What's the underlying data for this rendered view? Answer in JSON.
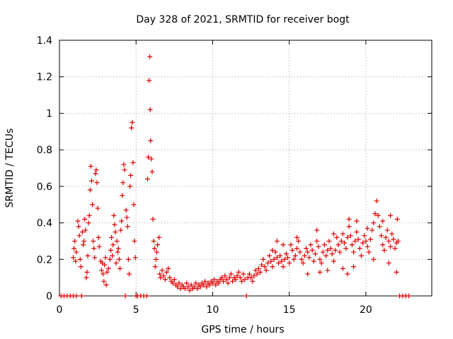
{
  "chart_data": {
    "type": "scatter",
    "title": "Day 328 of 2021, SRMTID for receiver bogt",
    "xlabel": "GPS time / hours",
    "ylabel": "SRMTID / TECUs",
    "xlim": [
      0,
      24.3
    ],
    "ylim": [
      0,
      1.4
    ],
    "xticks": [
      0,
      5,
      10,
      15,
      20
    ],
    "xtick_labels": [
      "0",
      "5",
      "10",
      "15",
      "20"
    ],
    "yticks": [
      0,
      0.2,
      0.4,
      0.6,
      0.8,
      1.0,
      1.2,
      1.4
    ],
    "ytick_labels": [
      "0",
      "0.2",
      "0.4",
      "0.6",
      "0.8",
      "1",
      "1.2",
      "1.4"
    ],
    "grid": true,
    "marker": "+",
    "marker_color": "#e00000",
    "series": [
      {
        "name": "SRMTID",
        "points": [
          [
            0.1,
            0.0
          ],
          [
            0.3,
            0.0
          ],
          [
            0.5,
            0.0
          ],
          [
            0.7,
            0.0
          ],
          [
            0.9,
            0.0
          ],
          [
            1.1,
            0.0
          ],
          [
            0.9,
            0.21
          ],
          [
            0.95,
            0.26
          ],
          [
            1.0,
            0.3
          ],
          [
            1.05,
            0.19
          ],
          [
            1.1,
            0.24
          ],
          [
            1.2,
            0.41
          ],
          [
            1.25,
            0.38
          ],
          [
            1.3,
            0.33
          ],
          [
            1.35,
            0.2
          ],
          [
            1.4,
            0.16
          ],
          [
            1.45,
            0.0
          ],
          [
            1.5,
            0.35
          ],
          [
            1.55,
            0.28
          ],
          [
            1.6,
            0.3
          ],
          [
            1.65,
            0.42
          ],
          [
            1.7,
            0.36
          ],
          [
            1.75,
            0.1
          ],
          [
            1.8,
            0.13
          ],
          [
            1.85,
            0.22
          ],
          [
            1.9,
            0.4
          ],
          [
            1.95,
            0.44
          ],
          [
            2.0,
            0.58
          ],
          [
            2.05,
            0.71
          ],
          [
            2.1,
            0.63
          ],
          [
            2.15,
            0.5
          ],
          [
            2.2,
            0.3
          ],
          [
            2.25,
            0.26
          ],
          [
            2.3,
            0.21
          ],
          [
            2.35,
            0.67
          ],
          [
            2.4,
            0.69
          ],
          [
            2.45,
            0.62
          ],
          [
            2.5,
            0.48
          ],
          [
            2.55,
            0.32
          ],
          [
            2.6,
            0.27
          ],
          [
            2.7,
            0.19
          ],
          [
            2.75,
            0.14
          ],
          [
            2.8,
            0.18
          ],
          [
            2.85,
            0.12
          ],
          [
            2.9,
            0.08
          ],
          [
            2.95,
            0.17
          ],
          [
            3.0,
            0.21
          ],
          [
            3.05,
            0.06
          ],
          [
            3.1,
            0.13
          ],
          [
            3.2,
            0.15
          ],
          [
            3.3,
            0.2
          ],
          [
            3.35,
            0.25
          ],
          [
            3.4,
            0.32
          ],
          [
            3.45,
            0.22
          ],
          [
            3.5,
            0.28
          ],
          [
            3.55,
            0.44
          ],
          [
            3.6,
            0.39
          ],
          [
            3.65,
            0.35
          ],
          [
            3.7,
            0.18
          ],
          [
            3.75,
            0.3
          ],
          [
            3.8,
            0.24
          ],
          [
            3.85,
            0.26
          ],
          [
            3.9,
            0.2
          ],
          [
            3.95,
            0.15
          ],
          [
            4.0,
            0.36
          ],
          [
            4.05,
            0.41
          ],
          [
            4.1,
            0.55
          ],
          [
            4.15,
            0.62
          ],
          [
            4.2,
            0.72
          ],
          [
            4.25,
            0.69
          ],
          [
            4.3,
            0.0
          ],
          [
            4.35,
            0.47
          ],
          [
            4.4,
            0.43
          ],
          [
            4.45,
            0.38
          ],
          [
            4.5,
            0.2
          ],
          [
            4.55,
            0.12
          ],
          [
            4.6,
            0.6
          ],
          [
            4.65,
            0.66
          ],
          [
            4.7,
            0.92
          ],
          [
            4.75,
            0.95
          ],
          [
            4.8,
            0.73
          ],
          [
            4.85,
            0.5
          ],
          [
            4.9,
            0.3
          ],
          [
            4.95,
            0.21
          ],
          [
            5.0,
            0.0
          ],
          [
            5.1,
            0.0
          ],
          [
            5.3,
            0.0
          ],
          [
            5.5,
            0.0
          ],
          [
            5.7,
            0.0
          ],
          [
            5.75,
            0.64
          ],
          [
            5.8,
            0.76
          ],
          [
            5.85,
            1.18
          ],
          [
            5.9,
            1.31
          ],
          [
            5.92,
            1.02
          ],
          [
            5.95,
            0.85
          ],
          [
            6.0,
            0.75
          ],
          [
            6.05,
            0.68
          ],
          [
            6.1,
            0.42
          ],
          [
            6.15,
            0.3
          ],
          [
            6.2,
            0.26
          ],
          [
            6.25,
            0.16
          ],
          [
            6.3,
            0.2
          ],
          [
            6.35,
            0.24
          ],
          [
            6.4,
            0.28
          ],
          [
            6.5,
            0.32
          ],
          [
            6.55,
            0.12
          ],
          [
            6.6,
            0.1
          ],
          [
            6.7,
            0.14
          ],
          [
            6.8,
            0.11
          ],
          [
            6.9,
            0.09
          ],
          [
            7.0,
            0.13
          ],
          [
            7.1,
            0.15
          ],
          [
            7.2,
            0.1
          ],
          [
            7.3,
            0.08
          ],
          [
            7.4,
            0.07
          ],
          [
            7.5,
            0.09
          ],
          [
            7.6,
            0.06
          ],
          [
            7.7,
            0.05
          ],
          [
            7.8,
            0.07
          ],
          [
            7.9,
            0.04
          ],
          [
            8.0,
            0.06
          ],
          [
            8.1,
            0.05
          ],
          [
            8.2,
            0.04
          ],
          [
            8.3,
            0.07
          ],
          [
            8.4,
            0.05
          ],
          [
            8.5,
            0.03
          ],
          [
            8.6,
            0.06
          ],
          [
            8.7,
            0.04
          ],
          [
            8.8,
            0.05
          ],
          [
            8.9,
            0.07
          ],
          [
            9.0,
            0.04
          ],
          [
            9.1,
            0.06
          ],
          [
            9.2,
            0.05
          ],
          [
            9.3,
            0.07
          ],
          [
            9.4,
            0.06
          ],
          [
            9.5,
            0.08
          ],
          [
            9.6,
            0.05
          ],
          [
            9.7,
            0.07
          ],
          [
            9.8,
            0.06
          ],
          [
            9.9,
            0.08
          ],
          [
            10.0,
            0.07
          ],
          [
            10.1,
            0.09
          ],
          [
            10.2,
            0.06
          ],
          [
            10.3,
            0.08
          ],
          [
            10.4,
            0.07
          ],
          [
            10.5,
            0.09
          ],
          [
            10.6,
            0.1
          ],
          [
            10.7,
            0.08
          ],
          [
            10.8,
            0.11
          ],
          [
            10.9,
            0.09
          ],
          [
            11.0,
            0.07
          ],
          [
            11.1,
            0.1
          ],
          [
            11.2,
            0.12
          ],
          [
            11.3,
            0.08
          ],
          [
            11.4,
            0.1
          ],
          [
            11.5,
            0.09
          ],
          [
            11.6,
            0.11
          ],
          [
            11.7,
            0.13
          ],
          [
            11.8,
            0.1
          ],
          [
            11.9,
            0.08
          ],
          [
            12.0,
            0.12
          ],
          [
            12.1,
            0.09
          ],
          [
            12.2,
            0.0
          ],
          [
            12.3,
            0.1
          ],
          [
            12.4,
            0.12
          ],
          [
            12.5,
            0.1
          ],
          [
            12.6,
            0.08
          ],
          [
            12.7,
            0.11
          ],
          [
            12.8,
            0.14
          ],
          [
            12.9,
            0.12
          ],
          [
            13.0,
            0.15
          ],
          [
            13.1,
            0.13
          ],
          [
            13.2,
            0.17
          ],
          [
            13.3,
            0.2
          ],
          [
            13.4,
            0.16
          ],
          [
            13.5,
            0.14
          ],
          [
            13.6,
            0.18
          ],
          [
            13.7,
            0.22
          ],
          [
            13.8,
            0.19
          ],
          [
            13.9,
            0.16
          ],
          [
            14.0,
            0.2
          ],
          [
            14.1,
            0.24
          ],
          [
            14.2,
            0.21
          ],
          [
            14.3,
            0.18
          ],
          [
            14.4,
            0.22
          ],
          [
            14.5,
            0.19
          ],
          [
            14.6,
            0.16
          ],
          [
            14.7,
            0.2
          ],
          [
            14.8,
            0.23
          ],
          [
            14.9,
            0.21
          ],
          [
            15.0,
            0.18
          ],
          [
            15.1,
            0.28
          ],
          [
            15.2,
            0.25
          ],
          [
            15.3,
            0.2
          ],
          [
            15.4,
            0.22
          ],
          [
            15.5,
            0.26
          ],
          [
            15.6,
            0.3
          ],
          [
            15.7,
            0.24
          ],
          [
            15.8,
            0.2
          ],
          [
            15.9,
            0.18
          ],
          [
            16.0,
            0.22
          ],
          [
            16.1,
            0.26
          ],
          [
            16.2,
            0.24
          ],
          [
            16.3,
            0.21
          ],
          [
            16.4,
            0.28
          ],
          [
            16.5,
            0.25
          ],
          [
            16.6,
            0.19
          ],
          [
            16.7,
            0.23
          ],
          [
            16.8,
            0.3
          ],
          [
            16.9,
            0.27
          ],
          [
            17.0,
            0.2
          ],
          [
            17.1,
            0.18
          ],
          [
            17.2,
            0.24
          ],
          [
            17.3,
            0.28
          ],
          [
            17.4,
            0.22
          ],
          [
            17.5,
            0.25
          ],
          [
            17.6,
            0.3
          ],
          [
            17.7,
            0.26
          ],
          [
            17.8,
            0.23
          ],
          [
            17.9,
            0.19
          ],
          [
            18.0,
            0.25
          ],
          [
            18.1,
            0.32
          ],
          [
            18.2,
            0.28
          ],
          [
            18.3,
            0.24
          ],
          [
            18.4,
            0.3
          ],
          [
            18.5,
            0.34
          ],
          [
            18.6,
            0.29
          ],
          [
            18.7,
            0.26
          ],
          [
            18.8,
            0.32
          ],
          [
            18.9,
            0.38
          ],
          [
            19.0,
            0.33
          ],
          [
            19.1,
            0.28
          ],
          [
            19.2,
            0.24
          ],
          [
            19.3,
            0.3
          ],
          [
            19.4,
            0.35
          ],
          [
            19.5,
            0.31
          ],
          [
            19.6,
            0.26
          ],
          [
            19.7,
            0.22
          ],
          [
            19.8,
            0.29
          ],
          [
            19.9,
            0.33
          ],
          [
            20.0,
            0.3
          ],
          [
            20.1,
            0.27
          ],
          [
            20.2,
            0.24
          ],
          [
            20.3,
            0.31
          ],
          [
            20.4,
            0.36
          ],
          [
            20.5,
            0.4
          ],
          [
            20.6,
            0.45
          ],
          [
            20.7,
            0.52
          ],
          [
            20.8,
            0.44
          ],
          [
            20.9,
            0.38
          ],
          [
            21.0,
            0.33
          ],
          [
            21.1,
            0.28
          ],
          [
            21.2,
            0.25
          ],
          [
            21.3,
            0.32
          ],
          [
            21.4,
            0.36
          ],
          [
            21.5,
            0.3
          ],
          [
            21.6,
            0.27
          ],
          [
            21.7,
            0.34
          ],
          [
            21.8,
            0.31
          ],
          [
            21.9,
            0.26
          ],
          [
            22.0,
            0.29
          ],
          [
            22.1,
            0.3
          ],
          [
            22.2,
            0.0
          ],
          [
            22.4,
            0.0
          ],
          [
            22.6,
            0.0
          ],
          [
            22.8,
            0.0
          ],
          [
            18.5,
            0.15
          ],
          [
            18.8,
            0.12
          ],
          [
            19.2,
            0.16
          ],
          [
            16.2,
            0.12
          ],
          [
            17.0,
            0.13
          ],
          [
            17.5,
            0.14
          ],
          [
            21.5,
            0.18
          ],
          [
            22.0,
            0.13
          ],
          [
            20.5,
            0.2
          ],
          [
            15.5,
            0.32
          ],
          [
            16.8,
            0.36
          ],
          [
            17.9,
            0.34
          ],
          [
            18.9,
            0.42
          ],
          [
            19.4,
            0.41
          ],
          [
            20.1,
            0.37
          ],
          [
            21.1,
            0.41
          ],
          [
            22.05,
            0.42
          ],
          [
            21.6,
            0.44
          ],
          [
            14.6,
            0.28
          ],
          [
            13.9,
            0.25
          ],
          [
            14.2,
            0.3
          ]
        ]
      }
    ]
  }
}
